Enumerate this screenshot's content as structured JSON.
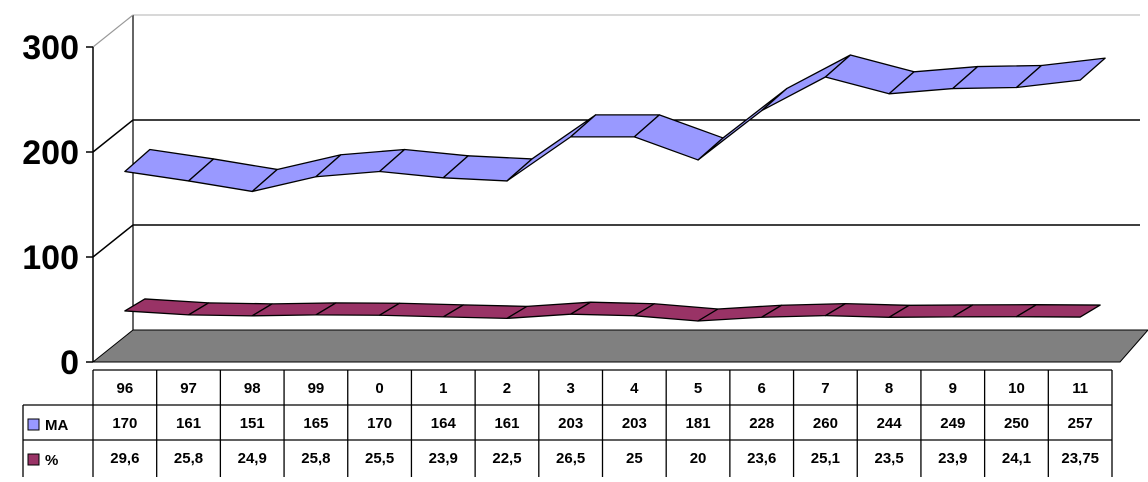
{
  "chart_data": {
    "type": "line",
    "style": "3d-ribbon",
    "categories": [
      "96",
      "97",
      "98",
      "99",
      "0",
      "1",
      "2",
      "3",
      "4",
      "5",
      "6",
      "7",
      "8",
      "9",
      "10",
      "11"
    ],
    "series": [
      {
        "name": "MA",
        "color": "#9999ff",
        "values": [
          170,
          161,
          151,
          165,
          170,
          164,
          161,
          203,
          203,
          181,
          228,
          260,
          244,
          249,
          250,
          257
        ],
        "labels": [
          "170",
          "161",
          "151",
          "165",
          "170",
          "164",
          "161",
          "203",
          "203",
          "181",
          "228",
          "260",
          "244",
          "249",
          "250",
          "257"
        ]
      },
      {
        "name": "%",
        "color": "#993366",
        "values": [
          29.6,
          25.8,
          24.9,
          25.8,
          25.5,
          23.9,
          22.5,
          26.5,
          25,
          20,
          23.6,
          25.1,
          23.5,
          23.9,
          24.1,
          23.75
        ],
        "labels": [
          "29,6",
          "25,8",
          "24,9",
          "25,8",
          "25,5",
          "23,9",
          "22,5",
          "26,5",
          "25",
          "20",
          "23,6",
          "25,1",
          "23,5",
          "23,9",
          "24,1",
          "23,75"
        ]
      }
    ],
    "yticks": [
      "0",
      "100",
      "200",
      "300"
    ],
    "ylim": [
      0,
      300
    ],
    "grid": true,
    "legend": "data-table",
    "floor_color": "#808080"
  }
}
